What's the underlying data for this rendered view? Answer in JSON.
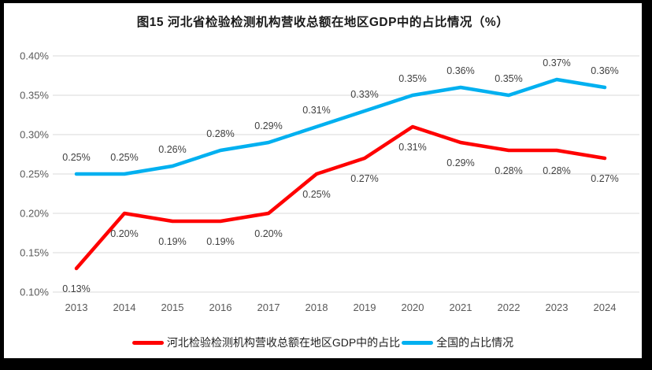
{
  "title": "图15 河北省检验检测机构营收总额在地区GDP中的占比情况（%）",
  "colors": {
    "frame": "#000000",
    "background": "#ffffff",
    "gridline": "#d9d9d9",
    "axis_text": "#595959",
    "data_label_text": "#3f3f3f",
    "series_hebei": "#ff0000",
    "series_national": "#00b0f0"
  },
  "chart_data": {
    "type": "line",
    "title": "图15 河北省检验检测机构营收总额在地区GDP中的占比情况（%）",
    "xlabel": "",
    "ylabel": "",
    "grid": true,
    "legend_position": "bottom",
    "categories": [
      "2013",
      "2014",
      "2015",
      "2016",
      "2017",
      "2018",
      "2019",
      "2020",
      "2021",
      "2022",
      "2023",
      "2024"
    ],
    "ylim": [
      0.1,
      0.4
    ],
    "y_ticks": [
      {
        "label": "0.40%",
        "value": 0.4
      },
      {
        "label": "0.35%",
        "value": 0.35
      },
      {
        "label": "0.30%",
        "value": 0.3
      },
      {
        "label": "0.25%",
        "value": 0.25
      },
      {
        "label": "0.20%",
        "value": 0.2
      },
      {
        "label": "0.15%",
        "value": 0.15
      },
      {
        "label": "0.10%",
        "value": 0.1
      }
    ],
    "series": [
      {
        "name": "河北检验检测机构营收总额在地区GDP中的占比",
        "color": "#ff0000",
        "label_position": "below",
        "values": [
          0.13,
          0.2,
          0.19,
          0.19,
          0.2,
          0.25,
          0.27,
          0.31,
          0.29,
          0.28,
          0.28,
          0.27
        ],
        "labels": [
          "0.13%",
          "0.20%",
          "0.19%",
          "0.19%",
          "0.20%",
          "0.25%",
          "0.27%",
          "0.31%",
          "0.29%",
          "0.28%",
          "0.28%",
          "0.27%"
        ]
      },
      {
        "name": "全国的占比情况",
        "color": "#00b0f0",
        "label_position": "above",
        "values": [
          0.25,
          0.25,
          0.26,
          0.28,
          0.29,
          0.31,
          0.33,
          0.35,
          0.36,
          0.35,
          0.37,
          0.36
        ],
        "labels": [
          "0.25%",
          "0.25%",
          "0.26%",
          "0.28%",
          "0.29%",
          "0.31%",
          "0.33%",
          "0.35%",
          "0.36%",
          "0.35%",
          "0.37%",
          "0.36%"
        ]
      }
    ]
  }
}
